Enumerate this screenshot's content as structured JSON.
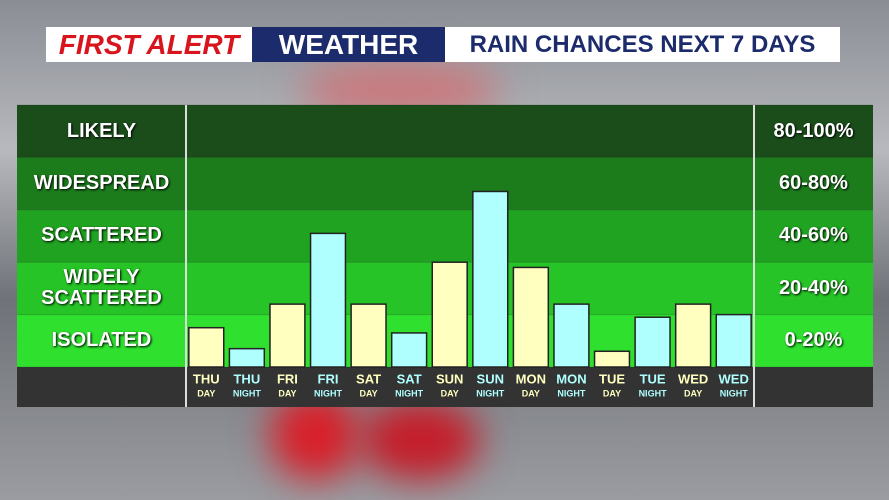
{
  "header": {
    "brand": "FIRST ALERT",
    "section": "WEATHER"
  },
  "chart_data": {
    "type": "bar",
    "title": "RAIN CHANCES NEXT 7 DAYS",
    "categories": [
      "THU",
      "THU",
      "FRI",
      "FRI",
      "SAT",
      "SAT",
      "SUN",
      "SUN",
      "MON",
      "MON",
      "TUE",
      "TUE",
      "WED",
      "WED"
    ],
    "sublabels": [
      "DAY",
      "NIGHT",
      "DAY",
      "NIGHT",
      "DAY",
      "NIGHT",
      "DAY",
      "NIGHT",
      "DAY",
      "NIGHT",
      "DAY",
      "NIGHT",
      "DAY",
      "NIGHT"
    ],
    "values": [
      15,
      7,
      24,
      51,
      24,
      13,
      40,
      67,
      38,
      24,
      6,
      19,
      24,
      20
    ],
    "colors": [
      "#ffffc0",
      "#b0ffff",
      "#ffffc0",
      "#b0ffff",
      "#ffffc0",
      "#b0ffff",
      "#ffffc0",
      "#b0ffff",
      "#ffffc0",
      "#b0ffff",
      "#ffffc0",
      "#b0ffff",
      "#ffffc0",
      "#b0ffff"
    ],
    "ylim": [
      0,
      100
    ],
    "yticks": [
      0,
      20,
      40,
      60,
      80,
      100
    ],
    "bands": [
      {
        "label": "ISOLATED",
        "range": "0-20%",
        "color": "#2fe02f"
      },
      {
        "label": "WIDELY SCATTERED",
        "range": "20-40%",
        "color": "#27c427"
      },
      {
        "label": "SCATTERED",
        "range": "40-60%",
        "color": "#20a320"
      },
      {
        "label": "WIDESPREAD",
        "range": "60-80%",
        "color": "#1c7c1c"
      },
      {
        "label": "LIKELY",
        "range": "80-100%",
        "color": "#1a4d1a"
      }
    ]
  }
}
